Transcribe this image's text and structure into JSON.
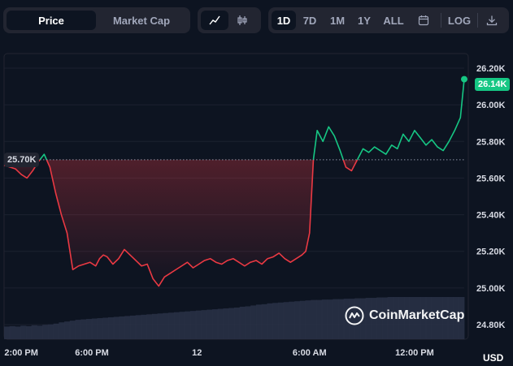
{
  "toolbar": {
    "metric_tabs": [
      {
        "label": "Price",
        "active": true
      },
      {
        "label": "Market Cap",
        "active": false
      }
    ],
    "chart_types": [
      {
        "icon": "line-chart-icon",
        "active": true
      },
      {
        "icon": "candlestick-icon",
        "active": false
      }
    ],
    "ranges": [
      {
        "label": "1D",
        "active": true
      },
      {
        "label": "7D",
        "active": false
      },
      {
        "label": "1M",
        "active": false
      },
      {
        "label": "1Y",
        "active": false
      },
      {
        "label": "ALL",
        "active": false
      }
    ],
    "calendar_icon": "calendar-icon",
    "log_label": "LOG",
    "download_icon": "download-icon"
  },
  "colors": {
    "background": "#0d1421",
    "up": "#16c784",
    "down": "#ea3943",
    "reference_badge": "#222531",
    "axis_text": "#a1a7bb"
  },
  "chart_data": {
    "type": "line",
    "y_ticks": [
      "26.20K",
      "26.00K",
      "25.80K",
      "25.60K",
      "25.40K",
      "25.20K",
      "25.00K",
      "24.80K"
    ],
    "x_ticks": [
      "2:00 PM",
      "6:00 PM",
      "12",
      "6:00 AM",
      "12:00 PM"
    ],
    "ylim": [
      24.72,
      26.28
    ],
    "reference_value": 25.7,
    "reference_label": "25.70K",
    "current_label": "26.14K",
    "currency": "USD",
    "watermark": "CoinMarketCap",
    "grid": true,
    "x": [
      0.0,
      0.3,
      0.6,
      0.9,
      1.2,
      1.5,
      1.8,
      2.1,
      2.4,
      2.7,
      3.0,
      3.3,
      3.6,
      3.9,
      4.2,
      4.5,
      4.8,
      5.0,
      5.2,
      5.4,
      5.7,
      6.0,
      6.3,
      6.6,
      6.9,
      7.2,
      7.5,
      7.8,
      8.1,
      8.4,
      8.7,
      9.0,
      9.3,
      9.6,
      9.9,
      10.2,
      10.5,
      10.8,
      11.1,
      11.4,
      11.7,
      12.0,
      12.3,
      12.6,
      12.9,
      13.2,
      13.5,
      13.8,
      14.1,
      14.4,
      14.7,
      15.0,
      15.3,
      15.6,
      15.8,
      16.0,
      16.2,
      16.4,
      16.7,
      17.0,
      17.3,
      17.6,
      17.9,
      18.2,
      18.5,
      18.8,
      19.1,
      19.4,
      19.7,
      20.0,
      20.3,
      20.6,
      20.9,
      21.2,
      21.5,
      21.8,
      22.1,
      22.4,
      22.7,
      23.0,
      23.3,
      23.6,
      23.9,
      24.1
    ],
    "values": [
      25.67,
      25.66,
      25.65,
      25.62,
      25.6,
      25.64,
      25.69,
      25.73,
      25.66,
      25.52,
      25.4,
      25.3,
      25.1,
      25.12,
      25.13,
      25.14,
      25.12,
      25.16,
      25.18,
      25.17,
      25.13,
      25.16,
      25.21,
      25.18,
      25.15,
      25.12,
      25.13,
      25.05,
      25.01,
      25.06,
      25.08,
      25.1,
      25.12,
      25.14,
      25.11,
      25.13,
      25.15,
      25.16,
      25.14,
      25.13,
      25.15,
      25.16,
      25.14,
      25.12,
      25.14,
      25.15,
      25.13,
      25.16,
      25.17,
      25.19,
      25.16,
      25.14,
      25.16,
      25.18,
      25.2,
      25.3,
      25.7,
      25.86,
      25.8,
      25.88,
      25.83,
      25.75,
      25.66,
      25.64,
      25.7,
      25.76,
      25.74,
      25.77,
      25.75,
      25.73,
      25.78,
      25.76,
      25.84,
      25.8,
      25.86,
      25.82,
      25.78,
      25.81,
      25.77,
      25.75,
      25.8,
      25.86,
      25.93,
      26.14
    ],
    "volume": [
      0.3,
      0.31,
      0.3,
      0.32,
      0.31,
      0.33,
      0.32,
      0.34,
      0.35,
      0.37,
      0.4,
      0.42,
      0.44,
      0.46,
      0.47,
      0.48,
      0.49,
      0.5,
      0.51,
      0.52,
      0.53,
      0.54,
      0.55,
      0.56,
      0.57,
      0.58,
      0.59,
      0.6,
      0.61,
      0.62,
      0.63,
      0.64,
      0.65,
      0.66,
      0.67,
      0.68,
      0.69,
      0.7,
      0.71,
      0.72,
      0.73,
      0.74,
      0.75,
      0.77,
      0.78,
      0.8,
      0.82,
      0.83,
      0.85,
      0.86,
      0.87,
      0.88,
      0.89,
      0.9,
      0.91,
      0.92,
      0.93,
      0.93,
      0.94,
      0.94,
      0.95,
      0.95,
      0.96,
      0.96,
      0.97,
      0.97,
      0.98,
      0.98,
      0.99,
      0.99,
      1.0,
      1.0,
      1.0,
      1.0,
      1.0,
      1.0,
      1.0,
      1.0,
      1.0,
      1.0,
      1.0,
      1.0,
      1.0,
      1.0
    ]
  }
}
